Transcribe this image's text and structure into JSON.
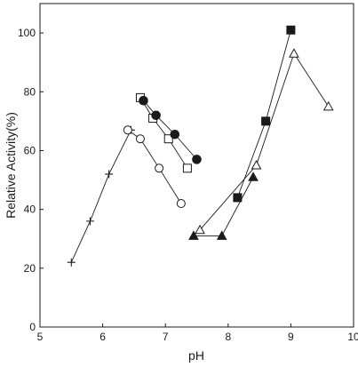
{
  "chart_data": {
    "type": "line",
    "title": "",
    "xlabel": "pH",
    "ylabel": "Relative Activity(%)",
    "xlim": [
      5,
      10
    ],
    "ylim": [
      0,
      110
    ],
    "xticks": [
      5,
      6,
      7,
      8,
      9,
      10
    ],
    "yticks": [
      0,
      20,
      40,
      60,
      80,
      100
    ],
    "grid": false,
    "legend": "none",
    "series": [
      {
        "marker": "plus",
        "x": [
          5.5,
          5.8,
          6.1,
          6.45
        ],
        "y": [
          22,
          36,
          52,
          67
        ]
      },
      {
        "marker": "circle-open",
        "x": [
          6.4,
          6.6,
          6.9,
          7.25
        ],
        "y": [
          67,
          64,
          54,
          42
        ]
      },
      {
        "marker": "square-open",
        "x": [
          6.6,
          6.8,
          7.05,
          7.35
        ],
        "y": [
          78,
          71,
          64,
          54
        ]
      },
      {
        "marker": "circle-filled",
        "x": [
          6.65,
          6.85,
          7.15,
          7.5
        ],
        "y": [
          77,
          72,
          65.5,
          57
        ]
      },
      {
        "marker": "triangle-open",
        "x": [
          7.55,
          8.45,
          9.05,
          9.6
        ],
        "y": [
          33,
          55,
          93,
          75
        ]
      },
      {
        "marker": "triangle-filled",
        "x": [
          7.45,
          7.9,
          8.4
        ],
        "y": [
          31,
          31,
          51
        ]
      },
      {
        "marker": "square-filled",
        "x": [
          8.15,
          8.6,
          9.0
        ],
        "y": [
          44,
          70,
          101
        ]
      }
    ]
  }
}
